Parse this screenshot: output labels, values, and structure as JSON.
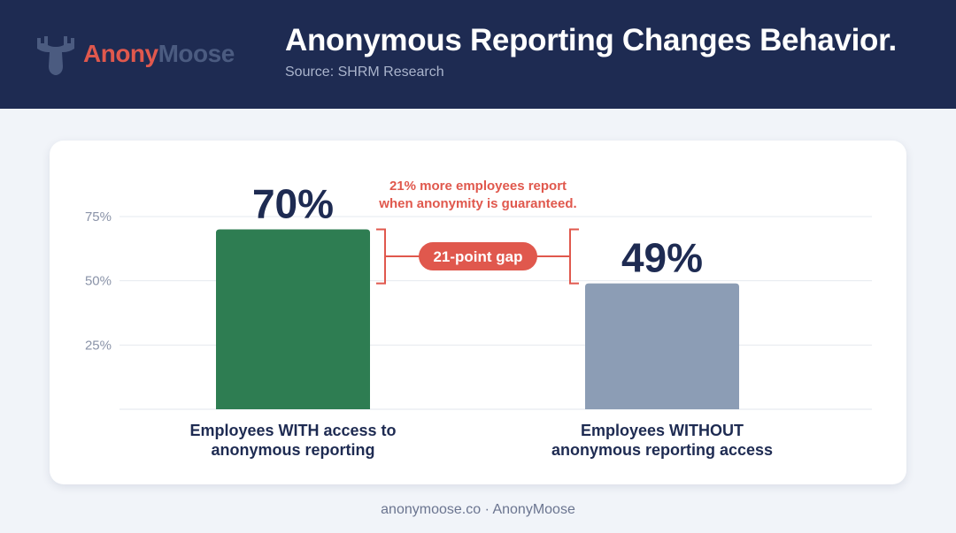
{
  "brand": {
    "part1": "Anony",
    "part2": "Moose",
    "icon": "moose-icon"
  },
  "header": {
    "title": "Anonymous Reporting Changes Behavior.",
    "subtitle": "Source: SHRM Research"
  },
  "colors": {
    "header_bg": "#1e2b52",
    "bar_with": "#2e7d52",
    "bar_without": "#8c9db5",
    "accent": "#e0584d",
    "value_text": "#1e2b52"
  },
  "chart_data": {
    "type": "bar",
    "categories": [
      [
        "Employees WITH access to",
        "anonymous reporting"
      ],
      [
        "Employees WITHOUT",
        "anonymous reporting access"
      ]
    ],
    "values": [
      70,
      49
    ],
    "value_labels": [
      "70%",
      "49%"
    ],
    "yticks": [
      25,
      50,
      75
    ],
    "ytick_labels": [
      "25%",
      "50%",
      "75%"
    ],
    "ylim": [
      0,
      75
    ],
    "grid": true,
    "annotation": [
      "21% more employees report",
      "when anonymity is guaranteed."
    ],
    "gap_label": "21-point gap"
  },
  "footer": "anonymoose.co · AnonyMoose"
}
